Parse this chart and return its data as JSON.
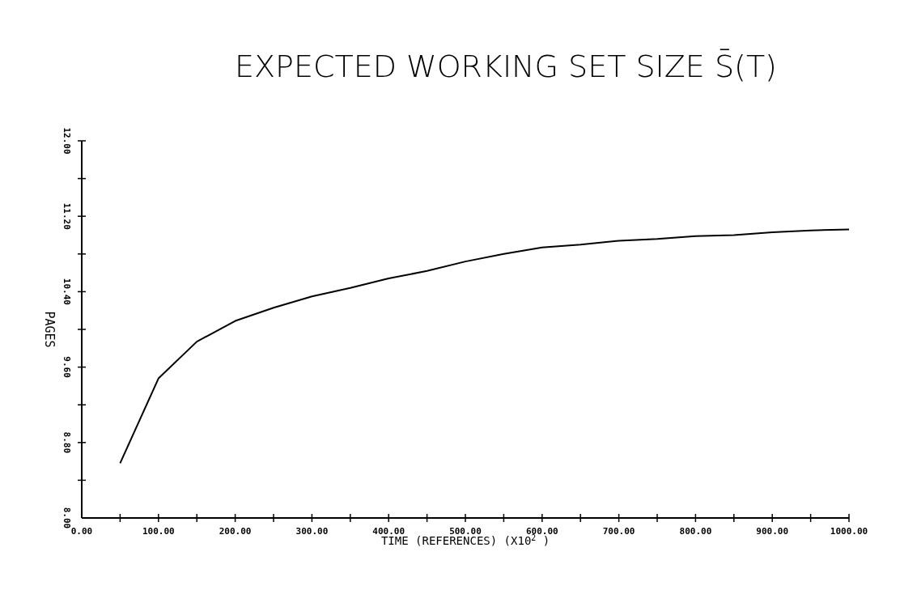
{
  "chart_data": {
    "type": "line",
    "title": "EXPECTED WORKING SET SIZE S̄(T)",
    "xlabel": "TIME (REFERENCES) (X10$^{2}$ )",
    "ylabel": "PAGES",
    "x": [
      50,
      100,
      150,
      200,
      250,
      300,
      350,
      400,
      450,
      500,
      550,
      600,
      650,
      700,
      750,
      800,
      850,
      900,
      950,
      1000
    ],
    "series": [
      {
        "color": "#000000",
        "values": [
          8.58,
          9.48,
          9.87,
          10.09,
          10.23,
          10.35,
          10.44,
          10.54,
          10.62,
          10.72,
          10.8,
          10.87,
          10.9,
          10.94,
          10.96,
          10.99,
          11.0,
          11.03,
          11.05,
          11.06
        ]
      }
    ],
    "xlim": [
      0,
      1000
    ],
    "ylim": [
      8,
      12
    ],
    "xticks": [
      {
        "value": 0,
        "label": "0.00"
      },
      {
        "value": 50,
        "label": null
      },
      {
        "value": 100,
        "label": "100.00"
      },
      {
        "value": 150,
        "label": null
      },
      {
        "value": 200,
        "label": "200.00"
      },
      {
        "value": 250,
        "label": null
      },
      {
        "value": 300,
        "label": "300.00"
      },
      {
        "value": 350,
        "label": null
      },
      {
        "value": 400,
        "label": "400.00"
      },
      {
        "value": 450,
        "label": null
      },
      {
        "value": 500,
        "label": "500.00"
      },
      {
        "value": 550,
        "label": null
      },
      {
        "value": 600,
        "label": "600.00"
      },
      {
        "value": 650,
        "label": null
      },
      {
        "value": 700,
        "label": "700.00"
      },
      {
        "value": 750,
        "label": null
      },
      {
        "value": 800,
        "label": "800.00"
      },
      {
        "value": 850,
        "label": null
      },
      {
        "value": 900,
        "label": "900.00"
      },
      {
        "value": 950,
        "label": null
      },
      {
        "value": 1000,
        "label": "1000.00"
      }
    ],
    "yticks": [
      {
        "value": 8,
        "label": "8.00"
      },
      {
        "value": 8.4,
        "label": null
      },
      {
        "value": 8.8,
        "label": "8.80"
      },
      {
        "value": 9.2,
        "label": null
      },
      {
        "value": 9.6,
        "label": "9.60"
      },
      {
        "value": 10,
        "label": null
      },
      {
        "value": 10.4,
        "label": "10.40"
      },
      {
        "value": 10.8,
        "label": null
      },
      {
        "value": 11.2,
        "label": "11.20"
      },
      {
        "value": 11.6,
        "label": null
      },
      {
        "value": 12,
        "label": "12.00"
      }
    ],
    "grid": false,
    "marker": "none",
    "line_style": "solid"
  }
}
